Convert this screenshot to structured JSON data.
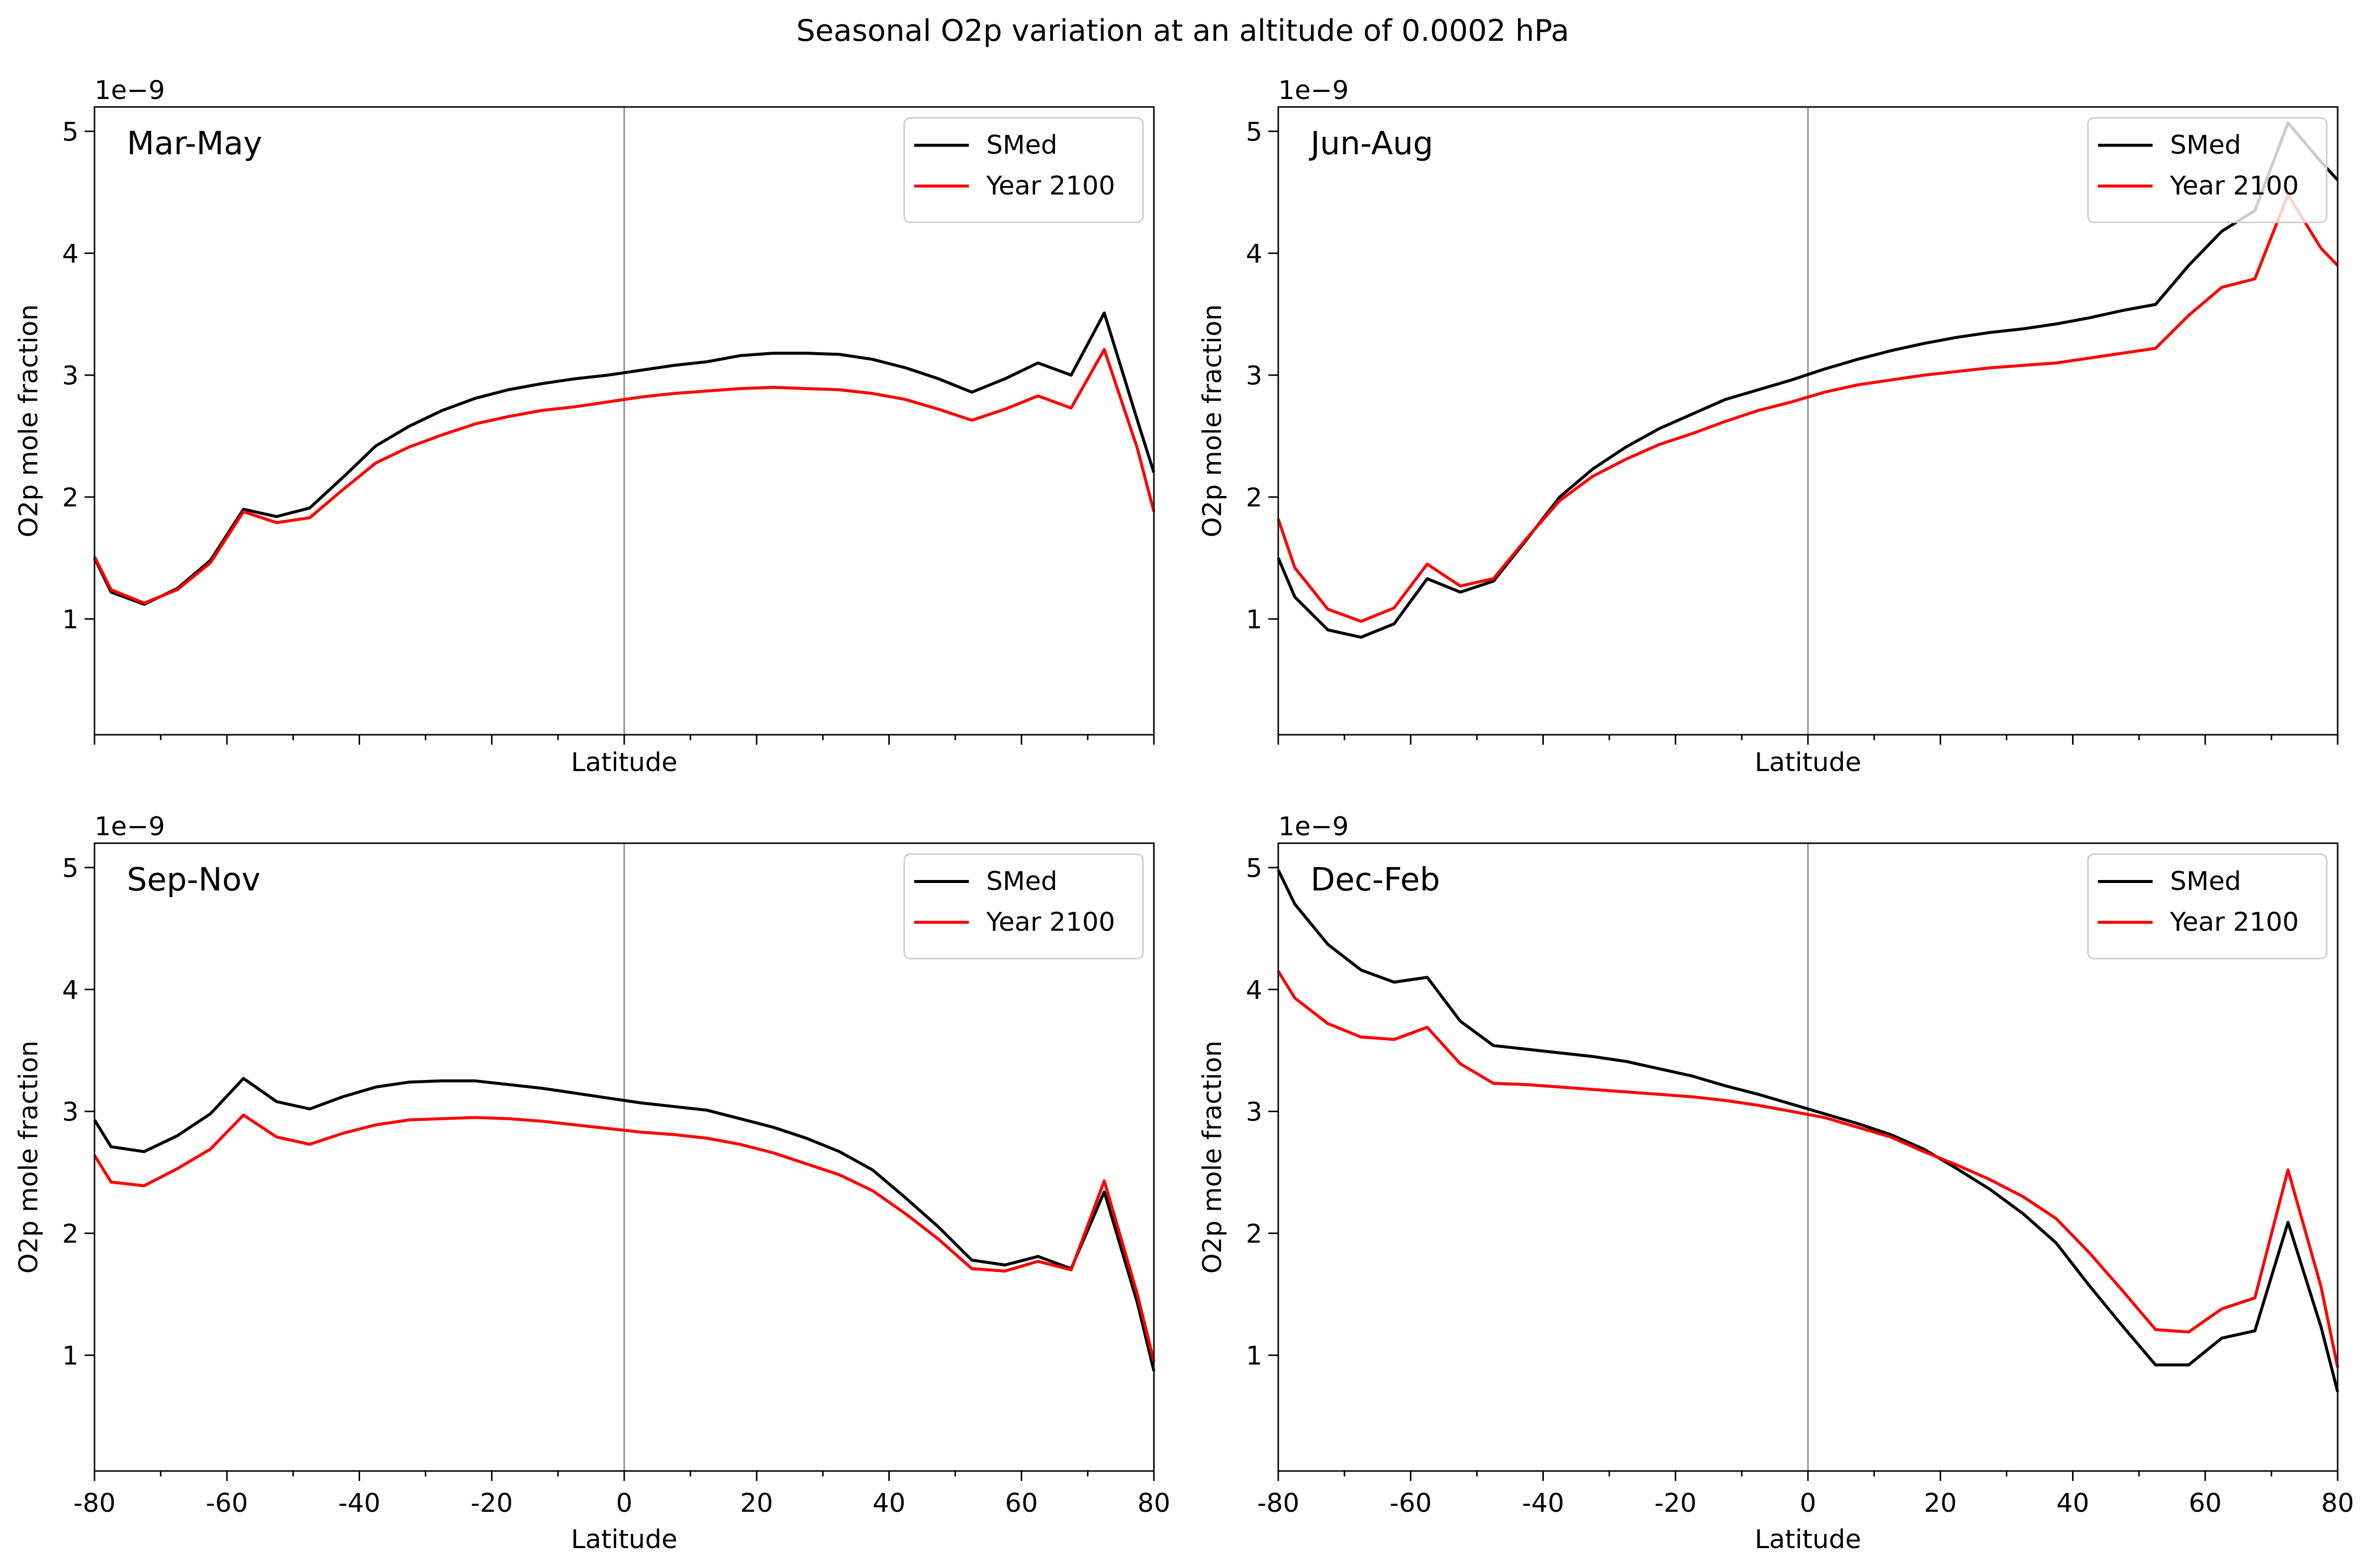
{
  "figure": {
    "title": "Seasonal O2p variation at an altitude of 0.0002 hPa"
  },
  "colors": {
    "smed": "#000000",
    "year2100": "#ff0000",
    "zero_line": "#8c8c8c"
  },
  "chart_data": [
    {
      "type": "line",
      "panel_label": "Mar-May",
      "xlabel": "Latitude",
      "ylabel": "O2p mole fraction",
      "offset_label": "1e−9",
      "xlim": [
        -80,
        80
      ],
      "ylim": [
        0.05,
        5.2
      ],
      "y_scale": 1e-09,
      "x_ticks": [
        -80,
        -60,
        -40,
        -20,
        0,
        20,
        40,
        60,
        80
      ],
      "x_ticklabels": [],
      "y_ticks": [
        1,
        2,
        3,
        4,
        5
      ],
      "y_ticklabels": [
        "1",
        "2",
        "3",
        "4",
        "5"
      ],
      "legend": "top-right",
      "x": [
        -80,
        -77.5,
        -72.5,
        -67.5,
        -62.5,
        -57.5,
        -52.5,
        -47.5,
        -42.5,
        -37.5,
        -32.5,
        -27.5,
        -22.5,
        -17.5,
        -12.5,
        -7.5,
        -2.5,
        2.5,
        7.5,
        12.5,
        17.5,
        22.5,
        27.5,
        32.5,
        37.5,
        42.5,
        47.5,
        52.5,
        57.5,
        62.5,
        67.5,
        72.5,
        77.5,
        80
      ],
      "series": [
        {
          "name": "SMed",
          "color": "#000000",
          "values": [
            1.5,
            1.22,
            1.12,
            1.25,
            1.48,
            1.9,
            1.84,
            1.91,
            2.16,
            2.42,
            2.58,
            2.71,
            2.81,
            2.88,
            2.93,
            2.97,
            3.0,
            3.04,
            3.08,
            3.11,
            3.16,
            3.18,
            3.18,
            3.17,
            3.13,
            3.06,
            2.97,
            2.86,
            2.97,
            3.1,
            3.0,
            3.51,
            2.63,
            2.2
          ]
        },
        {
          "name": "Year 2100",
          "color": "#ff0000",
          "values": [
            1.51,
            1.24,
            1.13,
            1.24,
            1.46,
            1.88,
            1.79,
            1.83,
            2.06,
            2.28,
            2.41,
            2.51,
            2.6,
            2.66,
            2.71,
            2.74,
            2.78,
            2.82,
            2.85,
            2.87,
            2.89,
            2.9,
            2.89,
            2.88,
            2.85,
            2.8,
            2.72,
            2.63,
            2.72,
            2.83,
            2.73,
            3.21,
            2.4,
            1.88
          ]
        }
      ]
    },
    {
      "type": "line",
      "panel_label": "Jun-Aug",
      "xlabel": "Latitude",
      "ylabel": "O2p mole fraction",
      "offset_label": "1e−9",
      "xlim": [
        -80,
        80
      ],
      "ylim": [
        0.05,
        5.2
      ],
      "y_scale": 1e-09,
      "x_ticks": [
        -80,
        -60,
        -40,
        -20,
        0,
        20,
        40,
        60,
        80
      ],
      "x_ticklabels": [],
      "y_ticks": [
        1,
        2,
        3,
        4,
        5
      ],
      "y_ticklabels": [
        "1",
        "2",
        "3",
        "4",
        "5"
      ],
      "legend": "top-right",
      "x": [
        -80,
        -77.5,
        -72.5,
        -67.5,
        -62.5,
        -57.5,
        -52.5,
        -47.5,
        -42.5,
        -37.5,
        -32.5,
        -27.5,
        -22.5,
        -17.5,
        -12.5,
        -7.5,
        -2.5,
        2.5,
        7.5,
        12.5,
        17.5,
        22.5,
        27.5,
        32.5,
        37.5,
        42.5,
        47.5,
        52.5,
        57.5,
        62.5,
        67.5,
        72.5,
        77.5,
        80
      ],
      "series": [
        {
          "name": "SMed",
          "color": "#000000",
          "values": [
            1.5,
            1.18,
            0.91,
            0.85,
            0.96,
            1.33,
            1.22,
            1.31,
            1.65,
            2.0,
            2.23,
            2.41,
            2.56,
            2.68,
            2.8,
            2.88,
            2.96,
            3.05,
            3.13,
            3.2,
            3.26,
            3.31,
            3.35,
            3.38,
            3.42,
            3.47,
            3.53,
            3.58,
            3.9,
            4.18,
            4.35,
            5.07,
            4.75,
            4.6
          ]
        },
        {
          "name": "Year 2100",
          "color": "#ff0000",
          "values": [
            1.82,
            1.42,
            1.08,
            0.98,
            1.09,
            1.45,
            1.27,
            1.33,
            1.66,
            1.97,
            2.17,
            2.31,
            2.43,
            2.52,
            2.62,
            2.71,
            2.78,
            2.86,
            2.92,
            2.96,
            3.0,
            3.03,
            3.06,
            3.08,
            3.1,
            3.14,
            3.18,
            3.22,
            3.49,
            3.72,
            3.79,
            4.48,
            4.04,
            3.9
          ]
        }
      ]
    },
    {
      "type": "line",
      "panel_label": "Sep-Nov",
      "xlabel": "Latitude",
      "ylabel": "O2p mole fraction",
      "offset_label": "1e−9",
      "xlim": [
        -80,
        80
      ],
      "ylim": [
        0.05,
        5.2
      ],
      "y_scale": 1e-09,
      "x_ticks": [
        -80,
        -60,
        -40,
        -20,
        0,
        20,
        40,
        60,
        80
      ],
      "x_ticklabels": [
        "-80",
        "-60",
        "-40",
        "-20",
        "0",
        "20",
        "40",
        "60",
        "80"
      ],
      "y_ticks": [
        1,
        2,
        3,
        4,
        5
      ],
      "y_ticklabels": [
        "1",
        "2",
        "3",
        "4",
        "5"
      ],
      "legend": "top-right",
      "x": [
        -80,
        -77.5,
        -72.5,
        -67.5,
        -62.5,
        -57.5,
        -52.5,
        -47.5,
        -42.5,
        -37.5,
        -32.5,
        -27.5,
        -22.5,
        -17.5,
        -12.5,
        -7.5,
        -2.5,
        2.5,
        7.5,
        12.5,
        17.5,
        22.5,
        27.5,
        32.5,
        37.5,
        42.5,
        47.5,
        52.5,
        57.5,
        62.5,
        67.5,
        72.5,
        77.5,
        80
      ],
      "series": [
        {
          "name": "SMed",
          "color": "#000000",
          "values": [
            2.93,
            2.71,
            2.67,
            2.8,
            2.98,
            3.27,
            3.08,
            3.02,
            3.12,
            3.2,
            3.24,
            3.25,
            3.25,
            3.22,
            3.19,
            3.15,
            3.11,
            3.07,
            3.04,
            3.01,
            2.94,
            2.87,
            2.78,
            2.67,
            2.52,
            2.29,
            2.05,
            1.78,
            1.74,
            1.81,
            1.71,
            2.34,
            1.43,
            0.87
          ]
        },
        {
          "name": "Year 2100",
          "color": "#ff0000",
          "values": [
            2.64,
            2.42,
            2.39,
            2.53,
            2.69,
            2.97,
            2.79,
            2.73,
            2.82,
            2.89,
            2.93,
            2.94,
            2.95,
            2.94,
            2.92,
            2.89,
            2.86,
            2.83,
            2.81,
            2.78,
            2.73,
            2.66,
            2.57,
            2.48,
            2.35,
            2.16,
            1.95,
            1.71,
            1.69,
            1.77,
            1.7,
            2.43,
            1.5,
            0.95
          ]
        }
      ]
    },
    {
      "type": "line",
      "panel_label": "Dec-Feb",
      "xlabel": "Latitude",
      "ylabel": "O2p mole fraction",
      "offset_label": "1e−9",
      "xlim": [
        -80,
        80
      ],
      "ylim": [
        0.05,
        5.2
      ],
      "y_scale": 1e-09,
      "x_ticks": [
        -80,
        -60,
        -40,
        -20,
        0,
        20,
        40,
        60,
        80
      ],
      "x_ticklabels": [
        "-80",
        "-60",
        "-40",
        "-20",
        "0",
        "20",
        "40",
        "60",
        "80"
      ],
      "y_ticks": [
        1,
        2,
        3,
        4,
        5
      ],
      "y_ticklabels": [
        "1",
        "2",
        "3",
        "4",
        "5"
      ],
      "legend": "top-right",
      "x": [
        -80,
        -77.5,
        -72.5,
        -67.5,
        -62.5,
        -57.5,
        -52.5,
        -47.5,
        -42.5,
        -37.5,
        -32.5,
        -27.5,
        -22.5,
        -17.5,
        -12.5,
        -7.5,
        -2.5,
        2.5,
        7.5,
        12.5,
        17.5,
        22.5,
        27.5,
        32.5,
        37.5,
        42.5,
        47.5,
        52.5,
        57.5,
        62.5,
        67.5,
        72.5,
        77.5,
        80
      ],
      "series": [
        {
          "name": "SMed",
          "color": "#000000",
          "values": [
            4.98,
            4.7,
            4.37,
            4.16,
            4.06,
            4.1,
            3.74,
            3.54,
            3.51,
            3.48,
            3.45,
            3.41,
            3.35,
            3.29,
            3.21,
            3.14,
            3.06,
            2.98,
            2.9,
            2.81,
            2.69,
            2.53,
            2.36,
            2.16,
            1.92,
            1.57,
            1.24,
            0.92,
            0.92,
            1.14,
            1.2,
            2.09,
            1.23,
            0.7
          ]
        },
        {
          "name": "Year 2100",
          "color": "#ff0000",
          "values": [
            4.15,
            3.93,
            3.72,
            3.61,
            3.59,
            3.69,
            3.39,
            3.23,
            3.22,
            3.2,
            3.18,
            3.16,
            3.14,
            3.12,
            3.09,
            3.05,
            3.0,
            2.95,
            2.87,
            2.79,
            2.67,
            2.56,
            2.44,
            2.3,
            2.12,
            1.84,
            1.53,
            1.21,
            1.19,
            1.38,
            1.47,
            2.52,
            1.56,
            0.9
          ]
        }
      ]
    }
  ]
}
